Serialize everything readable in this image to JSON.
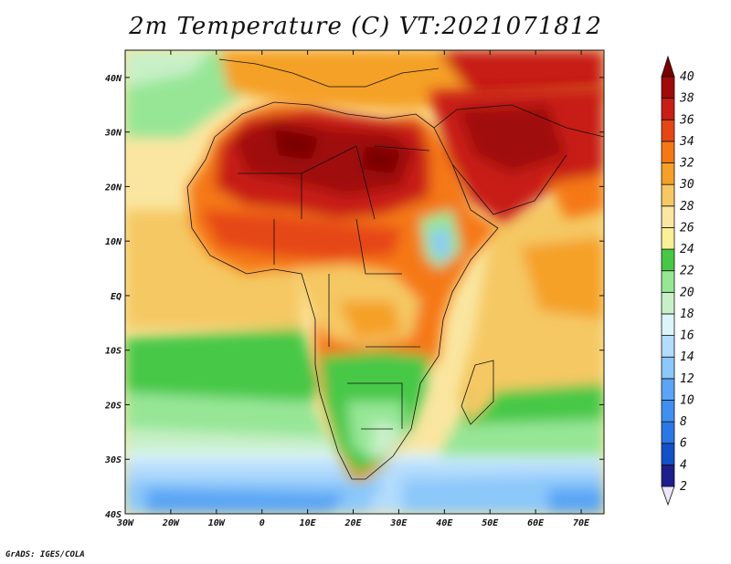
{
  "title": "2m Temperature (C) VT:2021071812",
  "credit": "GrADS: IGES/COLA",
  "map": {
    "projection": "latlon",
    "lon_range": [
      -30,
      75
    ],
    "lat_range": [
      -40,
      45
    ],
    "lon_ticks": [
      {
        "value": -30,
        "label": "30W"
      },
      {
        "value": -20,
        "label": "20W"
      },
      {
        "value": -10,
        "label": "10W"
      },
      {
        "value": 0,
        "label": "0"
      },
      {
        "value": 10,
        "label": "10E"
      },
      {
        "value": 20,
        "label": "20E"
      },
      {
        "value": 30,
        "label": "30E"
      },
      {
        "value": 40,
        "label": "40E"
      },
      {
        "value": 50,
        "label": "50E"
      },
      {
        "value": 60,
        "label": "60E"
      },
      {
        "value": 70,
        "label": "70E"
      }
    ],
    "lat_ticks": [
      {
        "value": 40,
        "label": "40N"
      },
      {
        "value": 30,
        "label": "30N"
      },
      {
        "value": 20,
        "label": "20N"
      },
      {
        "value": 10,
        "label": "10N"
      },
      {
        "value": 0,
        "label": "EQ"
      },
      {
        "value": -10,
        "label": "10S"
      },
      {
        "value": -20,
        "label": "20S"
      },
      {
        "value": -30,
        "label": "30S"
      },
      {
        "value": -40,
        "label": "40S"
      }
    ]
  },
  "colorbar": {
    "levels": [
      "2",
      "4",
      "6",
      "8",
      "10",
      "12",
      "14",
      "16",
      "18",
      "20",
      "22",
      "24",
      "26",
      "28",
      "30",
      "32",
      "34",
      "36",
      "38",
      "40"
    ],
    "colors": [
      "#f0e6ff",
      "#1e1e8c",
      "#1450c8",
      "#2a78e6",
      "#3f90f0",
      "#5aa5f5",
      "#8cc8fa",
      "#b4dcfc",
      "#dcf4fc",
      "#c8f0c8",
      "#96e696",
      "#46c846",
      "#faf096",
      "#fae6a0",
      "#f5c864",
      "#f5a028",
      "#f57814",
      "#e64614",
      "#c81e14",
      "#a00a0a",
      "#780000"
    ]
  },
  "regions": [
    {
      "name": "ocean-south-far",
      "value": "4-14"
    },
    {
      "name": "ocean-south-mid",
      "value": "14-22"
    },
    {
      "name": "ocean-tropical-atlantic",
      "value": "24-28"
    },
    {
      "name": "ocean-indian",
      "value": "24-30"
    },
    {
      "name": "sahara",
      "value": "34-40"
    },
    {
      "name": "sahel",
      "value": "30-36"
    },
    {
      "name": "central-africa",
      "value": "24-30"
    },
    {
      "name": "southern-africa",
      "value": "16-24"
    },
    {
      "name": "arabia",
      "value": "34-40"
    },
    {
      "name": "ethiopian-highlands",
      "value": "14-24"
    }
  ]
}
